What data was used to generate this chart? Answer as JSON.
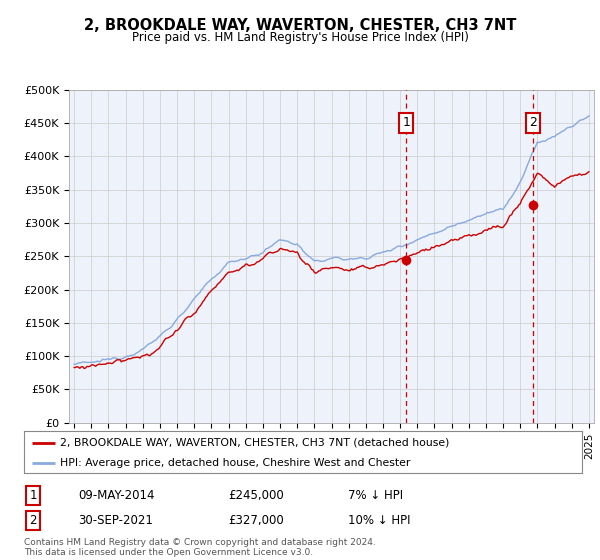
{
  "title": "2, BROOKDALE WAY, WAVERTON, CHESTER, CH3 7NT",
  "subtitle": "Price paid vs. HM Land Registry's House Price Index (HPI)",
  "ylabel_ticks": [
    "£0",
    "£50K",
    "£100K",
    "£150K",
    "£200K",
    "£250K",
    "£300K",
    "£350K",
    "£400K",
    "£450K",
    "£500K"
  ],
  "ytick_vals": [
    0,
    50000,
    100000,
    150000,
    200000,
    250000,
    300000,
    350000,
    400000,
    450000,
    500000
  ],
  "ylim": [
    0,
    500000
  ],
  "xlim_start": 1994.7,
  "xlim_end": 2025.3,
  "transaction1_date": "09-MAY-2014",
  "transaction1_price": 245000,
  "transaction1_label": "1",
  "transaction1_year": 2014.35,
  "transaction2_date": "30-SEP-2021",
  "transaction2_price": 327000,
  "transaction2_label": "2",
  "transaction2_year": 2021.75,
  "legend_line1": "2, BROOKDALE WAY, WAVERTON, CHESTER, CH3 7NT (detached house)",
  "legend_line2": "HPI: Average price, detached house, Cheshire West and Chester",
  "footer": "Contains HM Land Registry data © Crown copyright and database right 2024.\nThis data is licensed under the Open Government Licence v3.0.",
  "red_color": "#cc0000",
  "blue_color": "#88aadd",
  "bg_color": "#eef2fa",
  "grid_color": "#cccccc"
}
